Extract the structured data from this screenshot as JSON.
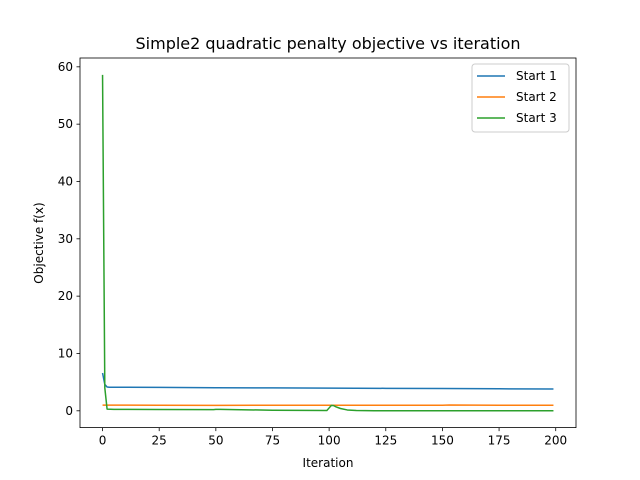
{
  "chart_data": {
    "type": "line",
    "title": "Simple2 quadratic penalty objective vs iteration",
    "xlabel": "Iteration",
    "ylabel": "Objective f(x)",
    "xlim": [
      -9.95,
      208.95
    ],
    "ylim": [
      -2.93,
      61.54
    ],
    "xticks": [
      0,
      25,
      50,
      75,
      100,
      125,
      150,
      175,
      200
    ],
    "yticks": [
      0,
      10,
      20,
      30,
      40,
      50,
      60
    ],
    "grid": false,
    "legend_position": "top-right",
    "series": [
      {
        "name": "Start 1",
        "color": "#1f77b4",
        "x": [
          0,
          1,
          2,
          3,
          5,
          10,
          25,
          50,
          75,
          100,
          125,
          150,
          175,
          199
        ],
        "y": [
          6.6,
          4.6,
          4.15,
          4.1,
          4.1,
          4.1,
          4.08,
          4.03,
          3.99,
          3.96,
          3.92,
          3.88,
          3.84,
          3.8
        ]
      },
      {
        "name": "Start 2",
        "color": "#ff7f0e",
        "x": [
          0,
          25,
          50,
          75,
          100,
          125,
          150,
          153,
          175,
          199
        ],
        "y": [
          1.0,
          0.97,
          0.95,
          0.97,
          0.96,
          0.97,
          0.97,
          1.02,
          0.96,
          0.97
        ]
      },
      {
        "name": "Start 3",
        "color": "#2ca02c",
        "x": [
          0,
          1,
          2,
          5,
          25,
          49,
          50,
          52,
          75,
          99,
          100,
          101,
          102,
          103,
          105,
          108,
          112,
          120,
          150,
          199
        ],
        "y": [
          58.6,
          4.0,
          0.3,
          0.25,
          0.22,
          0.2,
          0.25,
          0.25,
          0.1,
          0.05,
          0.5,
          0.95,
          0.9,
          0.7,
          0.4,
          0.15,
          0.05,
          0.02,
          0.02,
          0.02
        ]
      }
    ]
  }
}
